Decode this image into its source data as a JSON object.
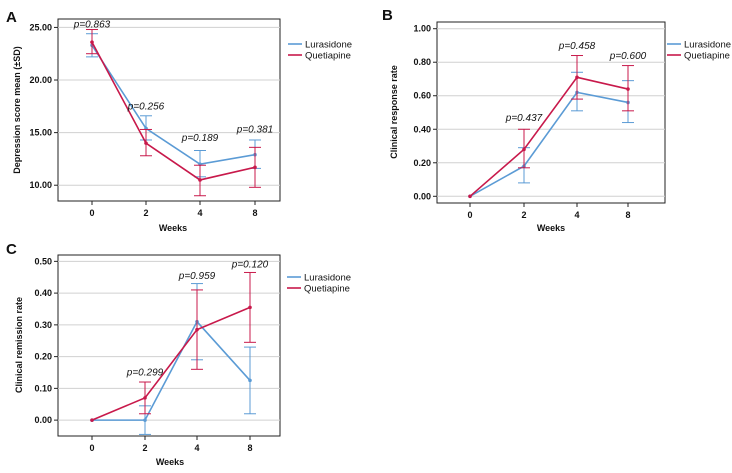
{
  "colors": {
    "lurasidone": "#5b9bd5",
    "quetiapine": "#c8194b",
    "frame": "#222222",
    "grid": "#d0d0d0"
  },
  "chart_data": [
    {
      "panel": "A",
      "type": "line",
      "xlabel": "Weeks",
      "ylabel": "Depression score  mean (±SD)",
      "categories": [
        "0",
        "2",
        "4",
        "8"
      ],
      "ylim": [
        8.5,
        25.8
      ],
      "yticks": [
        10,
        15,
        20,
        25
      ],
      "ytick_labels": [
        "10.00",
        "15.00",
        "20.00",
        "25.00"
      ],
      "legend": [
        "Lurasidone",
        "Quetiapine"
      ],
      "series": [
        {
          "name": "Lurasidone",
          "color": "#5b9bd5",
          "values": [
            23.3,
            15.4,
            12.0,
            12.9
          ],
          "err_low": [
            22.2,
            14.3,
            10.8,
            11.6
          ],
          "err_high": [
            24.4,
            16.6,
            13.3,
            14.3
          ]
        },
        {
          "name": "Quetiapine",
          "color": "#c8194b",
          "values": [
            23.6,
            14.0,
            10.5,
            11.7
          ],
          "err_low": [
            22.5,
            12.8,
            9.0,
            9.8
          ],
          "err_high": [
            24.8,
            15.3,
            11.9,
            13.6
          ]
        }
      ],
      "annotations": [
        {
          "text": "p=0.863",
          "x": "0",
          "y": 25.0
        },
        {
          "text": "p=0.256",
          "x": "2",
          "y": 17.2
        },
        {
          "text": "p=0.189",
          "x": "4",
          "y": 14.2
        },
        {
          "text": "p=0.381",
          "x": "8",
          "y": 15.0
        }
      ]
    },
    {
      "panel": "B",
      "type": "line",
      "xlabel": "Weeks",
      "ylabel": "Clinical response rate",
      "categories": [
        "0",
        "2",
        "4",
        "8"
      ],
      "ylim": [
        -0.04,
        1.04
      ],
      "yticks": [
        0,
        0.2,
        0.4,
        0.6,
        0.8,
        1.0
      ],
      "ytick_labels": [
        "0.00",
        "0.20",
        "0.40",
        "0.60",
        "0.80",
        "1.00"
      ],
      "legend": [
        "Lurasidone",
        "Quetiapine"
      ],
      "series": [
        {
          "name": "Lurasidone",
          "color": "#5b9bd5",
          "values": [
            0.0,
            0.18,
            0.62,
            0.56
          ],
          "err_low": [
            0.0,
            0.08,
            0.51,
            0.44
          ],
          "err_high": [
            0.0,
            0.29,
            0.74,
            0.69
          ]
        },
        {
          "name": "Quetiapine",
          "color": "#c8194b",
          "values": [
            0.0,
            0.28,
            0.71,
            0.64
          ],
          "err_low": [
            0.0,
            0.17,
            0.58,
            0.51
          ],
          "err_high": [
            0.0,
            0.4,
            0.84,
            0.78
          ]
        }
      ],
      "annotations": [
        {
          "text": "p=0.437",
          "x": "2",
          "y": 0.45
        },
        {
          "text": "p=0.458",
          "x": "4",
          "y": 0.88
        },
        {
          "text": "p=0.600",
          "x": "8",
          "y": 0.82
        }
      ]
    },
    {
      "panel": "C",
      "type": "line",
      "xlabel": "Weeks",
      "ylabel": "Clinical remission rate",
      "categories": [
        "0",
        "2",
        "4",
        "8"
      ],
      "ylim": [
        -0.05,
        0.52
      ],
      "yticks": [
        0,
        0.1,
        0.2,
        0.3,
        0.4,
        0.5
      ],
      "ytick_labels": [
        "0.00",
        "0.10",
        "0.20",
        "0.30",
        "0.40",
        "0.50"
      ],
      "legend": [
        "Lurasidone",
        "Quetiapine"
      ],
      "series": [
        {
          "name": "Lurasidone",
          "color": "#5b9bd5",
          "values": [
            0.0,
            0.0,
            0.31,
            0.125
          ],
          "err_low": [
            0.0,
            -0.045,
            0.19,
            0.02
          ],
          "err_high": [
            0.0,
            0.045,
            0.43,
            0.23
          ]
        },
        {
          "name": "Quetiapine",
          "color": "#c8194b",
          "values": [
            0.0,
            0.07,
            0.285,
            0.355
          ],
          "err_low": [
            0.0,
            0.02,
            0.16,
            0.245
          ],
          "err_high": [
            0.0,
            0.12,
            0.41,
            0.465
          ]
        }
      ],
      "annotations": [
        {
          "text": "p=0.299",
          "x": "2",
          "y": 0.14
        },
        {
          "text": "p=0.959",
          "x": "4",
          "y": 0.445
        },
        {
          "text": "p=0.120",
          "x": "8",
          "y": 0.48
        }
      ]
    }
  ]
}
